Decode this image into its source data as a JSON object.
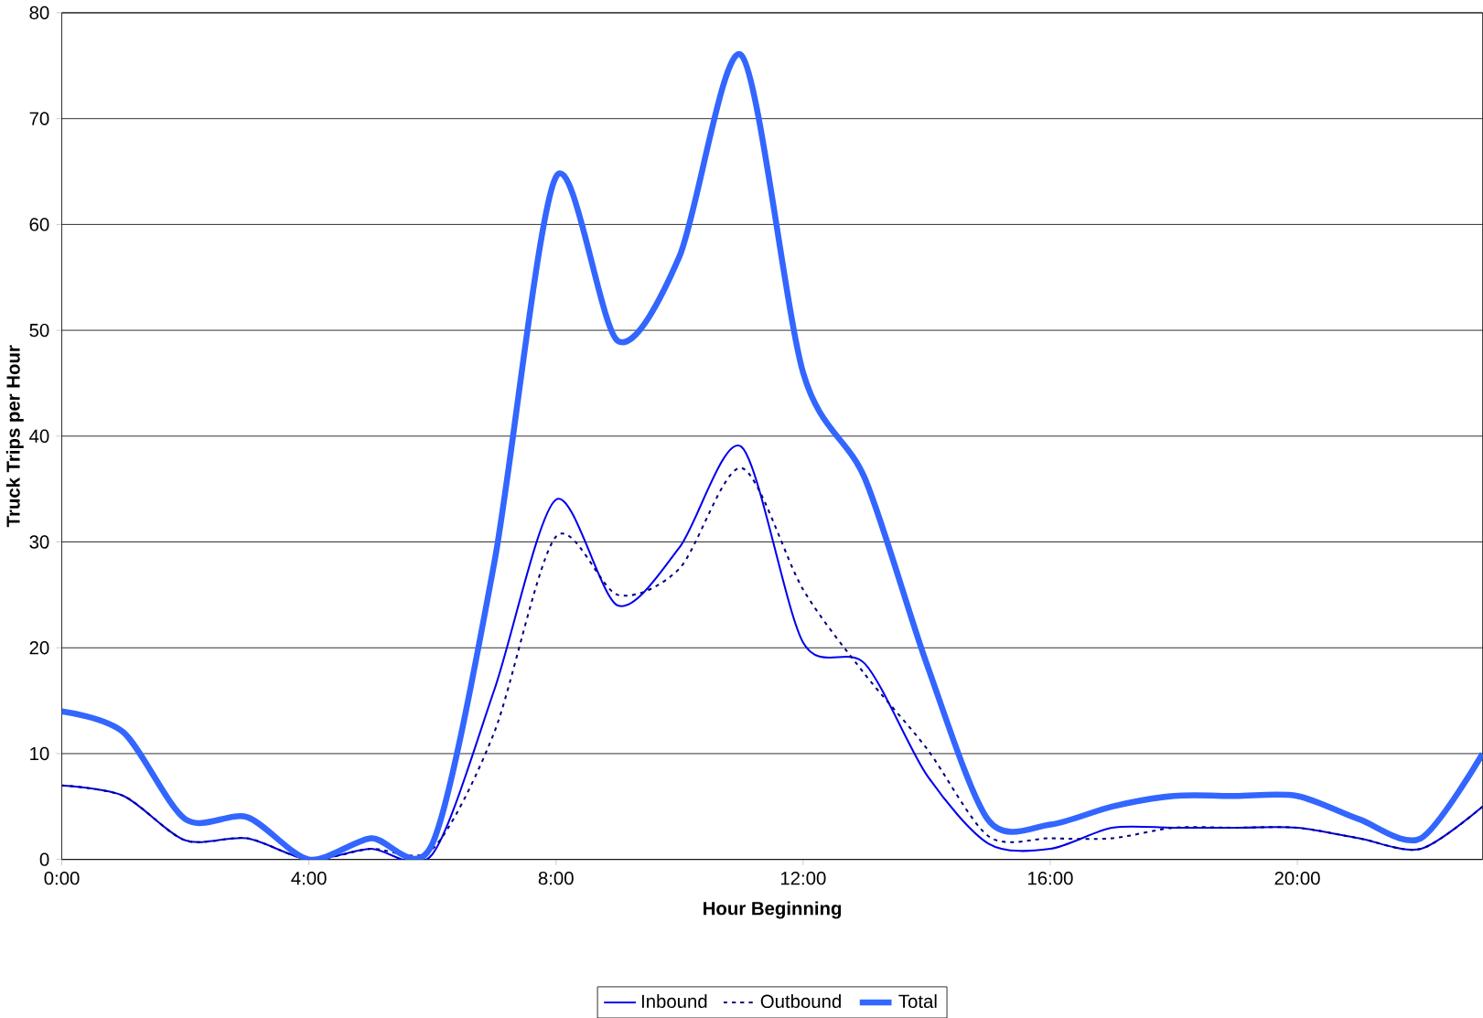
{
  "chart_data": {
    "type": "line",
    "xlabel": "Hour Beginning",
    "ylabel": "Truck Trips per Hour",
    "x": [
      0,
      1,
      2,
      3,
      4,
      5,
      6,
      7,
      8,
      9,
      10,
      11,
      12,
      13,
      14,
      15,
      16,
      17,
      18,
      19,
      20,
      21,
      22,
      23
    ],
    "series": [
      {
        "name": "Inbound",
        "color": "#0000ee",
        "line_style": "solid",
        "values": [
          7,
          6,
          1.8,
          2,
          0,
          1,
          0.5,
          16,
          34,
          24,
          29.5,
          39,
          20.5,
          18.5,
          8,
          1.5,
          1,
          3,
          3,
          3,
          3,
          2,
          1,
          5
        ]
      },
      {
        "name": "Outbound",
        "color": "#000080",
        "line_style": "dotted",
        "values": [
          7,
          6,
          1.8,
          2,
          0,
          1,
          1,
          12,
          30.5,
          25,
          27.5,
          37,
          25.5,
          17.5,
          10.5,
          2.2,
          2,
          2,
          3,
          3,
          3,
          2,
          1,
          5
        ]
      },
      {
        "name": "Total",
        "color": "#3366ff",
        "line_style": "solid",
        "values": [
          14,
          12,
          3.8,
          4,
          0,
          2,
          1.5,
          28,
          64.5,
          49,
          57,
          76,
          46,
          36,
          18.5,
          3.7,
          3.3,
          5,
          6,
          6,
          6,
          3.8,
          2,
          10
        ]
      }
    ],
    "xlim": [
      0,
      23
    ],
    "ylim": [
      0,
      80
    ],
    "xticks": [
      {
        "value": 0,
        "label": "0:00"
      },
      {
        "value": 4,
        "label": "4:00"
      },
      {
        "value": 8,
        "label": "8:00"
      },
      {
        "value": 12,
        "label": "12:00"
      },
      {
        "value": 16,
        "label": "16:00"
      },
      {
        "value": 20,
        "label": "20:00"
      }
    ],
    "yticks": [
      0,
      10,
      20,
      30,
      40,
      50,
      60,
      70,
      80
    ],
    "grid": "y",
    "legend": "bottom",
    "marker": "none"
  }
}
